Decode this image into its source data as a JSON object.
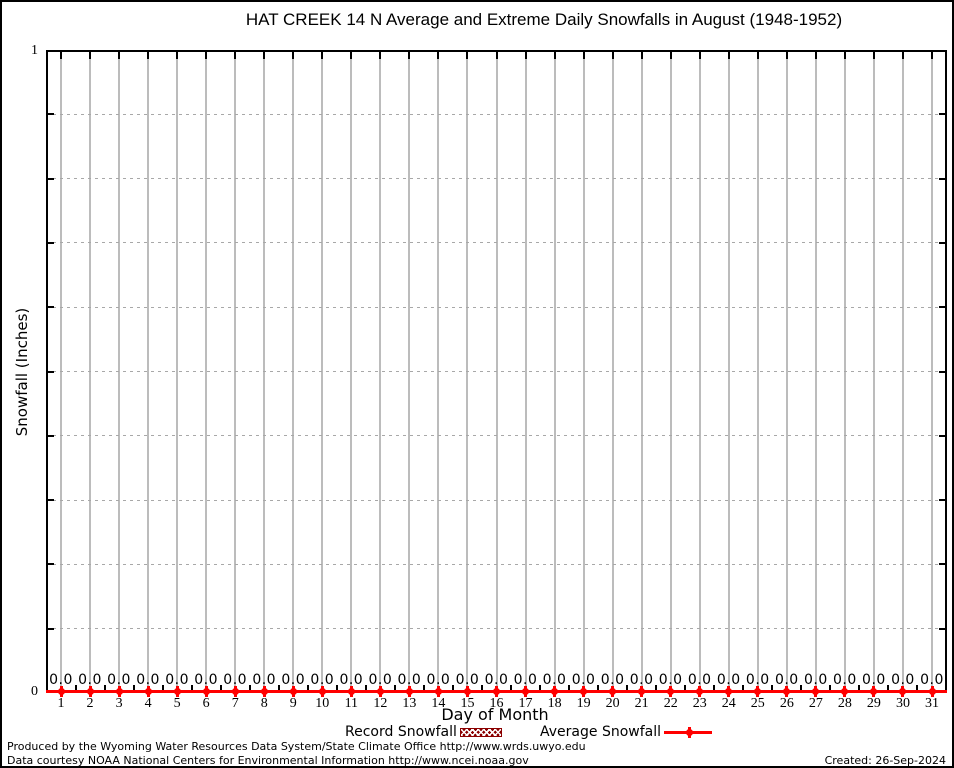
{
  "chart_data": {
    "type": "line",
    "title": "HAT CREEK 14 N Average and Extreme Daily Snowfalls in August (1948-1952)",
    "xlabel": "Day of Month",
    "ylabel": "Snowfall (Inches)",
    "x": [
      1,
      2,
      3,
      4,
      5,
      6,
      7,
      8,
      9,
      10,
      11,
      12,
      13,
      14,
      15,
      16,
      17,
      18,
      19,
      20,
      21,
      22,
      23,
      24,
      25,
      26,
      27,
      28,
      29,
      30,
      31
    ],
    "series": [
      {
        "name": "Record Snowfall",
        "style": "hatched-bar",
        "color": "#8b0000",
        "values": [
          0,
          0,
          0,
          0,
          0,
          0,
          0,
          0,
          0,
          0,
          0,
          0,
          0,
          0,
          0,
          0,
          0,
          0,
          0,
          0,
          0,
          0,
          0,
          0,
          0,
          0,
          0,
          0,
          0,
          0,
          0
        ]
      },
      {
        "name": "Average Snowfall",
        "style": "line-with-point-markers",
        "color": "#ff0000",
        "values": [
          0,
          0,
          0,
          0,
          0,
          0,
          0,
          0,
          0,
          0,
          0,
          0,
          0,
          0,
          0,
          0,
          0,
          0,
          0,
          0,
          0,
          0,
          0,
          0,
          0,
          0,
          0,
          0,
          0,
          0,
          0
        ]
      }
    ],
    "point_value_labels_format": "0.0",
    "ylim": [
      0,
      1
    ],
    "ytick_labels": [
      "1",
      "0"
    ],
    "ytick_interval": 0.1,
    "grid": {
      "vertical": "solid-gray",
      "horizontal": "dotted-gray",
      "grid_color": "#bcbcbc"
    },
    "legend_position": "bottom-center"
  },
  "footer": {
    "line1": "Produced by the Wyoming Water Resources Data System/State Climate Office http://www.wrds.uwyo.edu",
    "line2": "Data courtesy NOAA National Centers for Environmental Information http://www.ncei.noaa.gov",
    "created": "Created: 26-Sep-2024"
  },
  "colors": {
    "average_line": "#ff0000",
    "record_hatch": "#8b0000",
    "grid": "#bcbcbc",
    "text": "#000000",
    "background": "#ffffff"
  }
}
